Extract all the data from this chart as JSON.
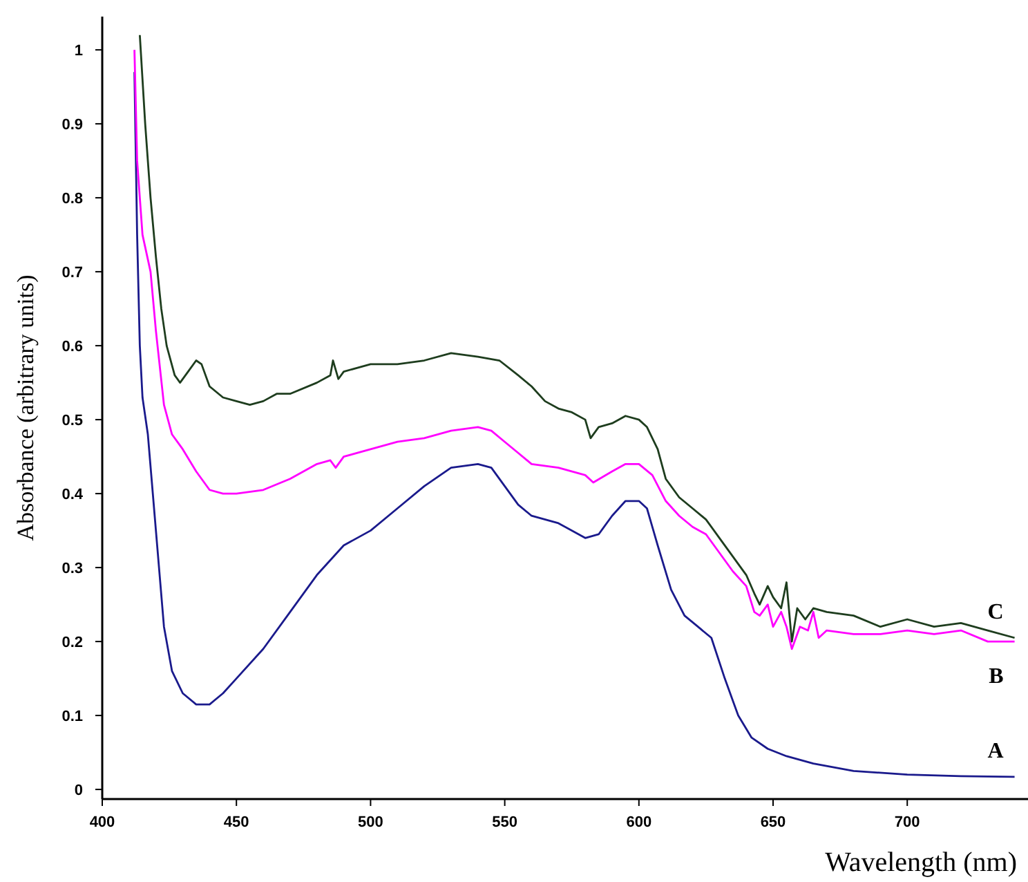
{
  "chart_data": {
    "type": "line",
    "xlabel": "Wavelength (nm)",
    "ylabel": "Absorbance (arbitrary units)",
    "xlim": [
      400,
      745
    ],
    "xticks": [
      400,
      450,
      500,
      550,
      600,
      650,
      700
    ],
    "ylim": [
      -0.013,
      1.045
    ],
    "yticks": [
      0,
      0.1,
      0.2,
      0.3,
      0.4,
      0.5,
      0.6,
      0.7,
      0.8,
      0.9,
      1
    ],
    "grid": false,
    "legend": false,
    "marker": "none",
    "line_style": "solid",
    "series": [
      {
        "name": "A",
        "color": "#1a1a8c",
        "x": [
          412,
          413,
          414,
          415,
          417,
          420,
          423,
          426,
          430,
          435,
          440,
          445,
          450,
          460,
          470,
          480,
          490,
          500,
          510,
          520,
          530,
          540,
          545,
          550,
          555,
          560,
          570,
          580,
          585,
          590,
          595,
          600,
          603,
          607,
          612,
          617,
          622,
          627,
          632,
          637,
          642,
          648,
          655,
          665,
          680,
          700,
          720,
          740
        ],
        "values": [
          0.97,
          0.75,
          0.6,
          0.53,
          0.48,
          0.35,
          0.22,
          0.16,
          0.13,
          0.115,
          0.115,
          0.13,
          0.15,
          0.19,
          0.24,
          0.29,
          0.33,
          0.35,
          0.38,
          0.41,
          0.435,
          0.44,
          0.435,
          0.41,
          0.385,
          0.37,
          0.36,
          0.34,
          0.345,
          0.37,
          0.39,
          0.39,
          0.38,
          0.33,
          0.27,
          0.235,
          0.22,
          0.205,
          0.15,
          0.1,
          0.07,
          0.055,
          0.045,
          0.035,
          0.025,
          0.02,
          0.018,
          0.017
        ]
      },
      {
        "name": "B",
        "color": "#ff00ff",
        "x": [
          412,
          413,
          415,
          418,
          420,
          423,
          426,
          430,
          435,
          440,
          445,
          450,
          460,
          470,
          480,
          485,
          487,
          490,
          500,
          510,
          520,
          530,
          540,
          545,
          550,
          555,
          560,
          570,
          580,
          583,
          590,
          595,
          600,
          605,
          610,
          615,
          620,
          625,
          630,
          635,
          640,
          643,
          645,
          648,
          650,
          653,
          655,
          657,
          660,
          663,
          665,
          667,
          670,
          680,
          690,
          700,
          710,
          720,
          730,
          740
        ],
        "values": [
          1.0,
          0.85,
          0.75,
          0.7,
          0.62,
          0.52,
          0.48,
          0.46,
          0.43,
          0.405,
          0.4,
          0.4,
          0.405,
          0.42,
          0.44,
          0.445,
          0.435,
          0.45,
          0.46,
          0.47,
          0.475,
          0.485,
          0.49,
          0.485,
          0.47,
          0.455,
          0.44,
          0.435,
          0.425,
          0.415,
          0.43,
          0.44,
          0.44,
          0.425,
          0.39,
          0.37,
          0.355,
          0.345,
          0.32,
          0.295,
          0.275,
          0.24,
          0.235,
          0.25,
          0.22,
          0.24,
          0.22,
          0.19,
          0.22,
          0.215,
          0.24,
          0.205,
          0.215,
          0.21,
          0.21,
          0.215,
          0.21,
          0.215,
          0.2,
          0.2
        ]
      },
      {
        "name": "C",
        "color": "#1e3d1e",
        "x": [
          414,
          416,
          418,
          420,
          422,
          424,
          427,
          429,
          432,
          435,
          437,
          440,
          445,
          450,
          455,
          460,
          465,
          470,
          480,
          485,
          486,
          488,
          490,
          500,
          510,
          520,
          530,
          540,
          548,
          555,
          560,
          565,
          570,
          575,
          580,
          582,
          585,
          590,
          595,
          600,
          603,
          607,
          610,
          615,
          620,
          625,
          630,
          635,
          640,
          643,
          645,
          648,
          650,
          653,
          655,
          657,
          659,
          662,
          665,
          670,
          680,
          690,
          700,
          710,
          720,
          730,
          740
        ],
        "values": [
          1.02,
          0.9,
          0.8,
          0.72,
          0.65,
          0.6,
          0.56,
          0.55,
          0.565,
          0.58,
          0.575,
          0.545,
          0.53,
          0.525,
          0.52,
          0.525,
          0.535,
          0.535,
          0.55,
          0.56,
          0.58,
          0.555,
          0.565,
          0.575,
          0.575,
          0.58,
          0.59,
          0.585,
          0.58,
          0.56,
          0.545,
          0.525,
          0.515,
          0.51,
          0.5,
          0.475,
          0.49,
          0.495,
          0.505,
          0.5,
          0.49,
          0.46,
          0.42,
          0.395,
          0.38,
          0.365,
          0.34,
          0.315,
          0.29,
          0.265,
          0.25,
          0.275,
          0.26,
          0.245,
          0.28,
          0.2,
          0.245,
          0.23,
          0.245,
          0.24,
          0.235,
          0.22,
          0.23,
          0.22,
          0.225,
          0.215,
          0.205
        ]
      }
    ]
  }
}
